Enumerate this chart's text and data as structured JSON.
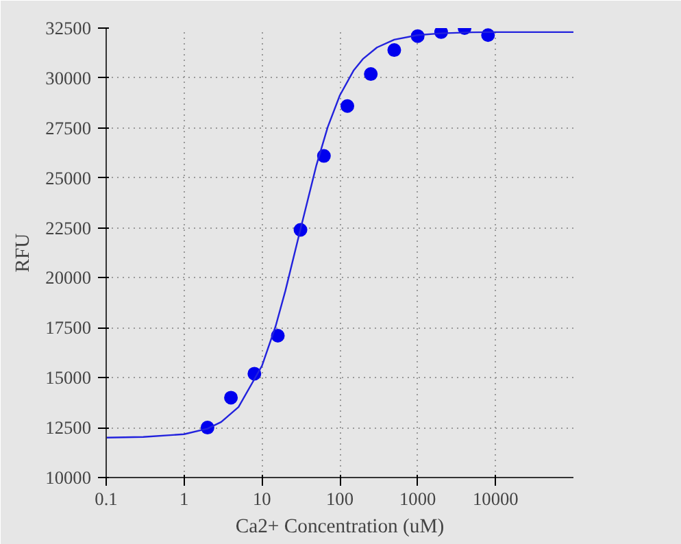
{
  "chart_data": {
    "type": "scatter",
    "xlabel": "Ca2+ Concentration (uM)",
    "ylabel": "RFU",
    "log": "x",
    "xlim": [
      0.1,
      100000
    ],
    "xticks": [
      0.1,
      1,
      10,
      100,
      1000,
      10000
    ],
    "ylim": [
      10000,
      32500
    ],
    "yticks": [
      10000,
      12500,
      15000,
      17500,
      20000,
      22500,
      25000,
      27500,
      30000,
      32500
    ],
    "grid": true,
    "series": [
      {
        "marker": "circle",
        "color": "#0000ee",
        "x": [
          2,
          4,
          8,
          16,
          31.25,
          62.5,
          125,
          250,
          500,
          1000,
          2000,
          4000,
          8000
        ],
        "values": [
          12500,
          14000,
          15200,
          17100,
          22400,
          26100,
          28600,
          30200,
          31400,
          32100,
          32300,
          32500,
          32150
        ]
      },
      {
        "type": "line",
        "line_style": "solid",
        "color": "#2222dd",
        "x": [
          0.1,
          0.3,
          1,
          2,
          3,
          5,
          10,
          15,
          20,
          30,
          50,
          70,
          100,
          150,
          200,
          300,
          500,
          1000,
          2000,
          5000,
          10000,
          100000
        ],
        "values": [
          12000,
          12030,
          12170,
          12450,
          12780,
          13530,
          15590,
          17580,
          19350,
          22150,
          25630,
          27550,
          29130,
          30370,
          30970,
          31530,
          31920,
          32150,
          32240,
          32290,
          32300,
          32300
        ]
      }
    ]
  }
}
